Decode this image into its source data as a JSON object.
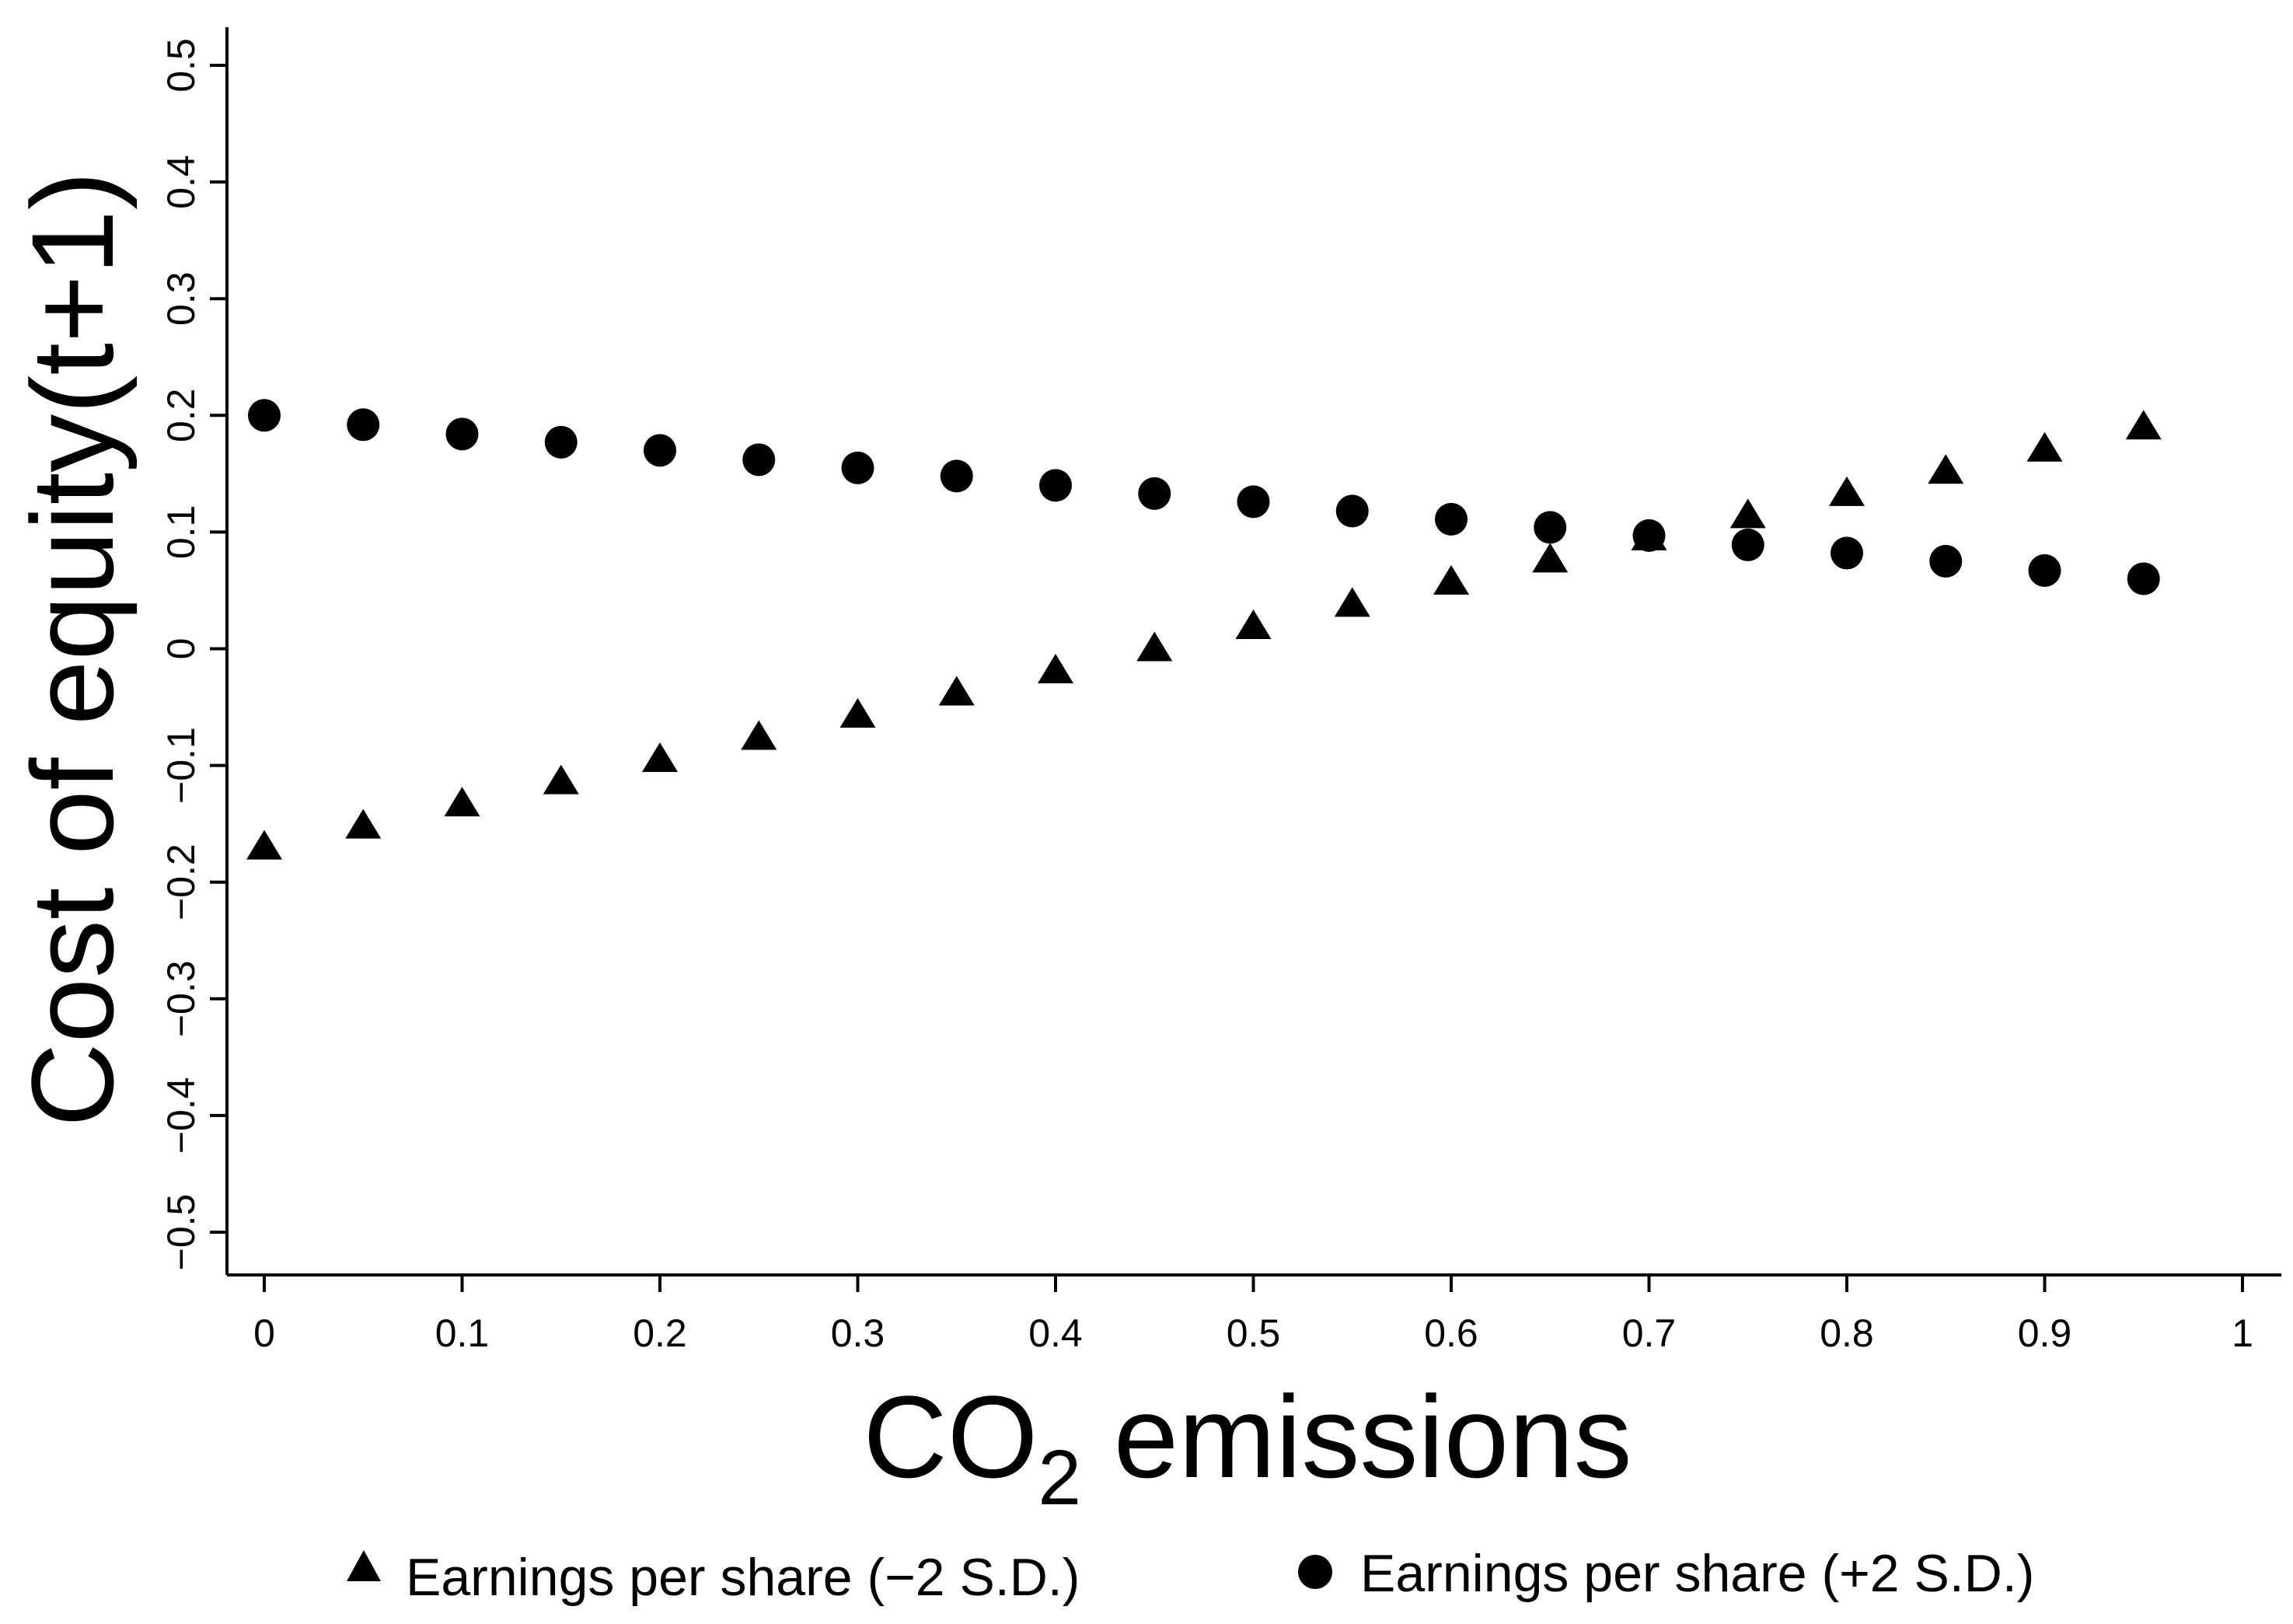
{
  "chart_data": {
    "type": "scatter",
    "title": "",
    "xlabel": {
      "main": "CO",
      "subscript": "2",
      "rest": " emissions"
    },
    "ylabel": "Cost of equity(t+1)",
    "xlim": [
      0,
      1
    ],
    "ylim": [
      -0.5,
      0.5
    ],
    "x_ticks": [
      "0",
      "0.1",
      "0.2",
      "0.3",
      "0.4",
      "0.5",
      "0.6",
      "0.7",
      "0.8",
      "0.9",
      "1"
    ],
    "y_ticks": [
      "−0.5",
      "−0.4",
      "−0.3",
      "−0.2",
      "−0.1",
      "0",
      "0.1",
      "0.2",
      "0.3",
      "0.4",
      "0.5"
    ],
    "x": [
      0,
      0.05,
      0.1,
      0.15,
      0.2,
      0.25,
      0.3,
      0.35,
      0.4,
      0.45,
      0.5,
      0.55,
      0.6,
      0.65,
      0.7,
      0.75,
      0.8,
      0.85,
      0.9,
      0.95
    ],
    "series": [
      {
        "name": "Earnings per share (−2 S.D.)",
        "marker": "triangle",
        "values": [
          -0.17,
          -0.152,
          -0.133,
          -0.114,
          -0.095,
          -0.076,
          -0.057,
          -0.038,
          -0.019,
          0.0,
          0.019,
          0.038,
          0.057,
          0.076,
          0.095,
          0.114,
          0.133,
          0.152,
          0.171,
          0.19
        ]
      },
      {
        "name": "Earnings per share (+2 S.D.)",
        "marker": "circle",
        "values": [
          0.2,
          0.192,
          0.184,
          0.177,
          0.17,
          0.162,
          0.155,
          0.148,
          0.14,
          0.133,
          0.126,
          0.118,
          0.111,
          0.104,
          0.097,
          0.089,
          0.082,
          0.075,
          0.067,
          0.06
        ]
      }
    ],
    "legend_position": "bottom",
    "grid": false,
    "colors": {
      "markers": "#000000",
      "axes": "#000000",
      "background": "#ffffff"
    }
  }
}
